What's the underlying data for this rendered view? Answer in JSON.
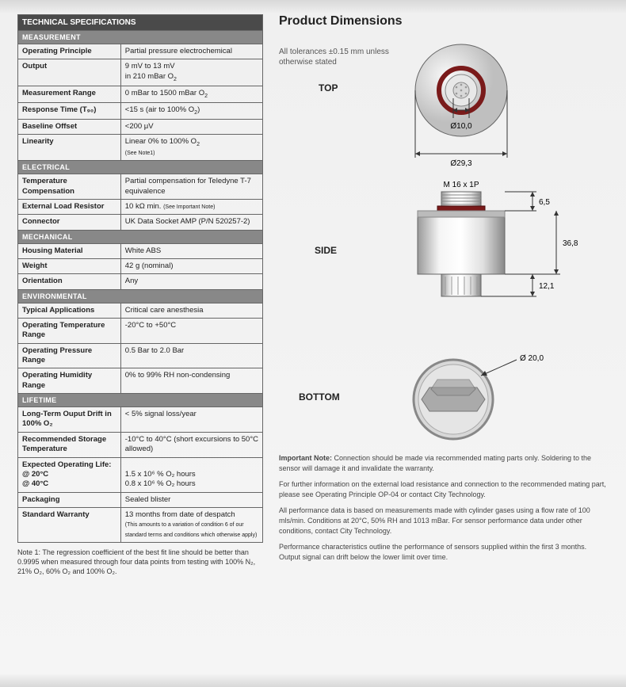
{
  "specs": {
    "title": "TECHNICAL SPECIFICATIONS",
    "sections": [
      {
        "name": "MEASUREMENT",
        "rows": [
          {
            "label": "Operating Principle",
            "value": "Partial pressure electrochemical"
          },
          {
            "label": "Output",
            "value": "9 mV to 13 mV\nin 210 mBar O",
            "sub": "2"
          },
          {
            "label": "Measurement Range",
            "value": "0 mBar to 1500 mBar O",
            "sub": "2"
          },
          {
            "label": "Response Time (T₉₀)",
            "value": "<15 s (air to 100% O",
            "sub": "2",
            "suffix": ")"
          },
          {
            "label": "Baseline Offset",
            "value": "<200 μV"
          },
          {
            "label": "Linearity",
            "value": "Linear 0% to 100% O",
            "sub": "2",
            "small": "\n(See Note1)"
          }
        ]
      },
      {
        "name": "ELECTRICAL",
        "rows": [
          {
            "label": "Temperature Compensation",
            "value": "Partial compensation for Teledyne T-7 equivalence"
          },
          {
            "label": "External Load Resistor",
            "value": "10 kΩ min. ",
            "small": "(See Important Note)"
          },
          {
            "label": "Connector",
            "value": "UK Data Socket AMP (P/N 520257-2)"
          }
        ]
      },
      {
        "name": "MECHANICAL",
        "rows": [
          {
            "label": "Housing Material",
            "value": "White ABS"
          },
          {
            "label": "Weight",
            "value": "42 g (nominal)"
          },
          {
            "label": "Orientation",
            "value": "Any"
          }
        ]
      },
      {
        "name": "ENVIRONMENTAL",
        "rows": [
          {
            "label": "Typical Applications",
            "value": "Critical care anesthesia"
          },
          {
            "label": "Operating Temperature Range",
            "value": "-20°C to +50°C"
          },
          {
            "label": "Operating Pressure Range",
            "value": "0.5 Bar to 2.0 Bar"
          },
          {
            "label": "Operating Humidity Range",
            "value": "0% to 99% RH non-condensing"
          }
        ]
      },
      {
        "name": "LIFETIME",
        "rows": [
          {
            "label": "Long-Term Ouput Drift in 100% O₂",
            "value": "< 5% signal loss/year"
          },
          {
            "label": "Recommended Storage Temperature",
            "value": "-10°C to 40°C (short excursions to 50°C allowed)"
          },
          {
            "label": "Expected Operating Life:\n@ 20°C\n@ 40°C",
            "value": "\n1.5 x 10⁶ % O₂ hours\n0.8 x 10⁶ % O₂ hours"
          },
          {
            "label": "Packaging",
            "value": "Sealed blister"
          },
          {
            "label": "Standard Warranty",
            "value": "13 months from date of despatch",
            "small": "\n(This amounts to a variation of condition 6 of our standard terms and conditions which otherwise apply)"
          }
        ]
      }
    ]
  },
  "note1": "Note 1: The regression coefficient of the best fit line should be better than 0.9995 when measured through four data points from testing with 100% N₂, 21% O₂, 60% O₂ and 100% O₂.",
  "dimensions": {
    "title": "Product Dimensions",
    "tolerance": "All tolerances ±0.15 mm unless otherwise stated",
    "labels": {
      "top": "TOP",
      "side": "SIDE",
      "bottom": "BOTTOM"
    },
    "values": {
      "inner_dia": "Ø10,0",
      "outer_dia": "Ø29,3",
      "thread": "M 16 x 1P",
      "top_h": "6,5",
      "body_h": "36,8",
      "stem_h": "12,1",
      "bottom_dia": "Ø 20,0"
    },
    "colors": {
      "ring": "#7a1a1a",
      "body_light": "#f5f5f5",
      "body_shade": "#cccccc",
      "body_dark": "#888888",
      "line": "#333333"
    }
  },
  "important_notes": [
    "Important Note: Connection should be made via recommended mating parts only. Soldering to the sensor will damage it and invalidate the warranty.",
    "For further information on the external load resistance and connection to the recommended mating part, please see Operating Principle OP-04 or contact City Technology.",
    "All performance data is based on measurements made with cylinder gases using a flow rate of 100 mls/min. Conditions at 20°C, 50% RH and 1013 mBar. For sensor performance data under other conditions, contact City Technology.",
    "Performance characteristics outline the performance of sensors supplied within the first 3 months. Output signal can drift below the lower limit over time."
  ]
}
